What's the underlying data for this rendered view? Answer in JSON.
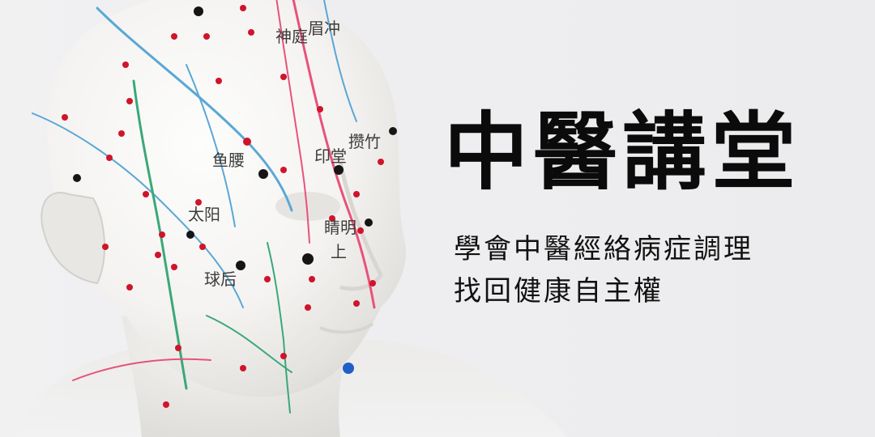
{
  "banner": {
    "title": "中醫講堂",
    "tagline_line1": "學會中醫經絡病症調理",
    "tagline_line2": "找回健康自主權"
  },
  "photo": {
    "subject": "acupuncture-model-head",
    "point_labels": {
      "shenting": "神庭",
      "meichong": "眉冲",
      "yuyao": "鱼腰",
      "yintang": "印堂",
      "cuanzhu": "攒竹",
      "taiyang": "太阳",
      "jingming": "睛明",
      "qiuhou": "球后",
      "shang": "上"
    }
  },
  "colors": {
    "title_text": "#0b0b0b",
    "tagline_text": "#111111",
    "background": "#eeeef0",
    "acupoint_red": "#d0142a",
    "meridian_pink": "#e8527a",
    "meridian_blue": "#5aa7d6",
    "meridian_green": "#3aa878"
  }
}
